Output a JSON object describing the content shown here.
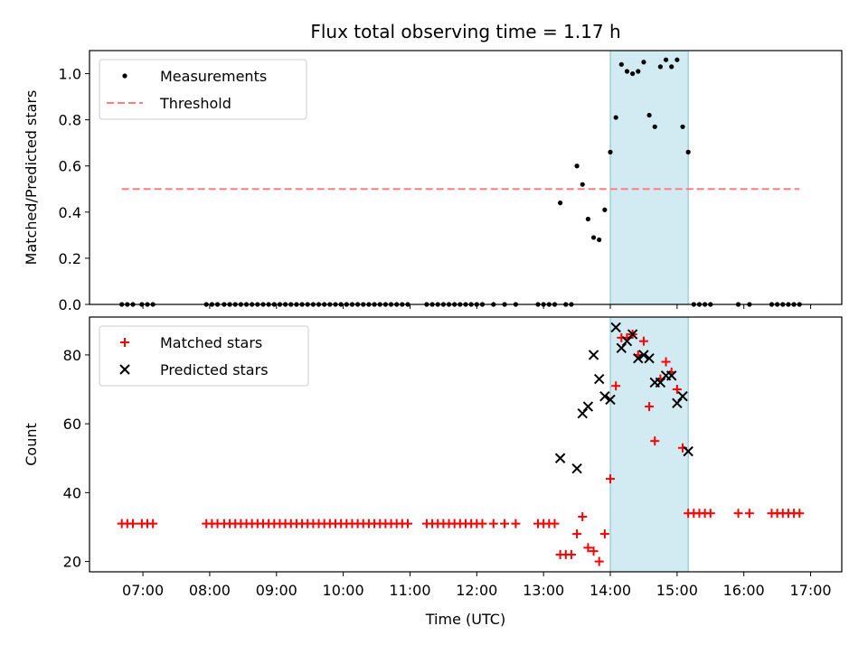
{
  "chart_data": [
    {
      "type": "scatter",
      "title": "Flux total observing time = 1.17 h",
      "xlabel": "",
      "ylabel": "Matched/Predicted stars",
      "ylim": [
        0,
        1.1
      ],
      "yticks": [
        "0.0",
        "0.2",
        "0.4",
        "0.6",
        "0.8",
        "1.0"
      ],
      "legend_position": "top-left",
      "highlight_span": {
        "from": "14:00",
        "to": "15:10",
        "color": "#add8e6"
      },
      "series": [
        {
          "name": "Measurements",
          "marker": "dot",
          "color": "#000000",
          "points": [
            [
              "06:41",
              0
            ],
            [
              "06:46",
              0
            ],
            [
              "06:51",
              0
            ],
            [
              "06:59",
              0
            ],
            [
              "07:04",
              0
            ],
            [
              "07:09",
              0
            ],
            [
              "07:57",
              0
            ],
            [
              "08:02",
              0
            ],
            [
              "08:07",
              0
            ],
            [
              "08:13",
              0
            ],
            [
              "08:18",
              0
            ],
            [
              "08:23",
              0
            ],
            [
              "08:28",
              0
            ],
            [
              "08:33",
              0
            ],
            [
              "08:38",
              0
            ],
            [
              "08:43",
              0
            ],
            [
              "08:48",
              0
            ],
            [
              "08:53",
              0
            ],
            [
              "08:58",
              0
            ],
            [
              "09:03",
              0
            ],
            [
              "09:08",
              0
            ],
            [
              "09:13",
              0
            ],
            [
              "09:18",
              0
            ],
            [
              "09:23",
              0
            ],
            [
              "09:28",
              0
            ],
            [
              "09:33",
              0
            ],
            [
              "09:38",
              0
            ],
            [
              "09:43",
              0
            ],
            [
              "09:48",
              0
            ],
            [
              "09:53",
              0
            ],
            [
              "09:58",
              0
            ],
            [
              "10:03",
              0
            ],
            [
              "10:08",
              0
            ],
            [
              "10:13",
              0
            ],
            [
              "10:18",
              0
            ],
            [
              "10:23",
              0
            ],
            [
              "10:28",
              0
            ],
            [
              "10:33",
              0
            ],
            [
              "10:38",
              0
            ],
            [
              "10:43",
              0
            ],
            [
              "10:48",
              0
            ],
            [
              "10:53",
              0
            ],
            [
              "10:58",
              0
            ],
            [
              "11:15",
              0
            ],
            [
              "11:20",
              0
            ],
            [
              "11:25",
              0
            ],
            [
              "11:30",
              0
            ],
            [
              "11:35",
              0
            ],
            [
              "11:40",
              0
            ],
            [
              "11:45",
              0
            ],
            [
              "11:50",
              0
            ],
            [
              "11:55",
              0
            ],
            [
              "12:00",
              0
            ],
            [
              "12:05",
              0
            ],
            [
              "12:15",
              0
            ],
            [
              "12:25",
              0
            ],
            [
              "12:35",
              0
            ],
            [
              "12:55",
              0
            ],
            [
              "13:00",
              0
            ],
            [
              "13:05",
              0
            ],
            [
              "13:10",
              0
            ],
            [
              "13:15",
              0.44
            ],
            [
              "13:20",
              0
            ],
            [
              "13:25",
              0
            ],
            [
              "13:30",
              0.6
            ],
            [
              "13:35",
              0.52
            ],
            [
              "13:40",
              0.37
            ],
            [
              "13:45",
              0.29
            ],
            [
              "13:50",
              0.28
            ],
            [
              "13:55",
              0.41
            ],
            [
              "14:00",
              0.66
            ],
            [
              "14:05",
              0.81
            ],
            [
              "14:10",
              1.04
            ],
            [
              "14:15",
              1.01
            ],
            [
              "14:20",
              1.0
            ],
            [
              "14:25",
              1.01
            ],
            [
              "14:30",
              1.05
            ],
            [
              "14:35",
              0.82
            ],
            [
              "14:40",
              0.77
            ],
            [
              "14:45",
              1.03
            ],
            [
              "14:50",
              1.06
            ],
            [
              "14:55",
              1.03
            ],
            [
              "15:00",
              1.06
            ],
            [
              "15:05",
              0.77
            ],
            [
              "15:10",
              0.66
            ],
            [
              "15:15",
              0
            ],
            [
              "15:20",
              0
            ],
            [
              "15:25",
              0
            ],
            [
              "15:30",
              0
            ],
            [
              "15:55",
              0
            ],
            [
              "16:05",
              0
            ],
            [
              "16:25",
              0
            ],
            [
              "16:30",
              0
            ],
            [
              "16:35",
              0
            ],
            [
              "16:40",
              0
            ],
            [
              "16:45",
              0
            ],
            [
              "16:50",
              0
            ]
          ]
        },
        {
          "name": "Threshold",
          "line": "dashed",
          "color": "#ff7f7f",
          "points": [
            [
              "06:41",
              0.5
            ],
            [
              "16:50",
              0.5
            ]
          ]
        }
      ]
    },
    {
      "type": "scatter",
      "title": "",
      "xlabel": "Time (UTC)",
      "ylabel": "Count",
      "ylim": [
        17,
        91
      ],
      "yticks": [
        "20",
        "40",
        "60",
        "80"
      ],
      "xticks": [
        "07:00",
        "08:00",
        "09:00",
        "10:00",
        "11:00",
        "12:00",
        "13:00",
        "14:00",
        "15:00",
        "16:00",
        "17:00"
      ],
      "xlim": [
        "06:12",
        "17:28"
      ],
      "legend_position": "top-left",
      "highlight_span": {
        "from": "14:00",
        "to": "15:10",
        "color": "#add8e6"
      },
      "series": [
        {
          "name": "Matched stars",
          "marker": "plus",
          "color": "#ff0000",
          "points": [
            [
              "06:41",
              31
            ],
            [
              "06:46",
              31
            ],
            [
              "06:51",
              31
            ],
            [
              "06:59",
              31
            ],
            [
              "07:04",
              31
            ],
            [
              "07:09",
              31
            ],
            [
              "07:57",
              31
            ],
            [
              "08:02",
              31
            ],
            [
              "08:07",
              31
            ],
            [
              "08:13",
              31
            ],
            [
              "08:18",
              31
            ],
            [
              "08:23",
              31
            ],
            [
              "08:28",
              31
            ],
            [
              "08:33",
              31
            ],
            [
              "08:38",
              31
            ],
            [
              "08:43",
              31
            ],
            [
              "08:48",
              31
            ],
            [
              "08:53",
              31
            ],
            [
              "08:58",
              31
            ],
            [
              "09:03",
              31
            ],
            [
              "09:08",
              31
            ],
            [
              "09:13",
              31
            ],
            [
              "09:18",
              31
            ],
            [
              "09:23",
              31
            ],
            [
              "09:28",
              31
            ],
            [
              "09:33",
              31
            ],
            [
              "09:38",
              31
            ],
            [
              "09:43",
              31
            ],
            [
              "09:48",
              31
            ],
            [
              "09:53",
              31
            ],
            [
              "09:58",
              31
            ],
            [
              "10:03",
              31
            ],
            [
              "10:08",
              31
            ],
            [
              "10:13",
              31
            ],
            [
              "10:18",
              31
            ],
            [
              "10:23",
              31
            ],
            [
              "10:28",
              31
            ],
            [
              "10:33",
              31
            ],
            [
              "10:38",
              31
            ],
            [
              "10:43",
              31
            ],
            [
              "10:48",
              31
            ],
            [
              "10:53",
              31
            ],
            [
              "10:58",
              31
            ],
            [
              "11:15",
              31
            ],
            [
              "11:20",
              31
            ],
            [
              "11:25",
              31
            ],
            [
              "11:30",
              31
            ],
            [
              "11:35",
              31
            ],
            [
              "11:40",
              31
            ],
            [
              "11:45",
              31
            ],
            [
              "11:50",
              31
            ],
            [
              "11:55",
              31
            ],
            [
              "12:00",
              31
            ],
            [
              "12:05",
              31
            ],
            [
              "12:15",
              31
            ],
            [
              "12:25",
              31
            ],
            [
              "12:35",
              31
            ],
            [
              "12:55",
              31
            ],
            [
              "13:00",
              31
            ],
            [
              "13:05",
              31
            ],
            [
              "13:10",
              31
            ],
            [
              "13:15",
              22
            ],
            [
              "13:20",
              22
            ],
            [
              "13:25",
              22
            ],
            [
              "13:30",
              28
            ],
            [
              "13:35",
              33
            ],
            [
              "13:40",
              24
            ],
            [
              "13:45",
              23
            ],
            [
              "13:50",
              20
            ],
            [
              "13:55",
              28
            ],
            [
              "14:00",
              44
            ],
            [
              "14:05",
              71
            ],
            [
              "14:10",
              85
            ],
            [
              "14:15",
              85
            ],
            [
              "14:20",
              86
            ],
            [
              "14:25",
              80
            ],
            [
              "14:30",
              84
            ],
            [
              "14:35",
              65
            ],
            [
              "14:40",
              55
            ],
            [
              "14:45",
              73
            ],
            [
              "14:50",
              78
            ],
            [
              "14:55",
              75
            ],
            [
              "15:00",
              70
            ],
            [
              "15:05",
              53
            ],
            [
              "15:10",
              34
            ],
            [
              "15:15",
              34
            ],
            [
              "15:20",
              34
            ],
            [
              "15:25",
              34
            ],
            [
              "15:30",
              34
            ],
            [
              "15:55",
              34
            ],
            [
              "16:05",
              34
            ],
            [
              "16:25",
              34
            ],
            [
              "16:30",
              34
            ],
            [
              "16:35",
              34
            ],
            [
              "16:40",
              34
            ],
            [
              "16:45",
              34
            ],
            [
              "16:50",
              34
            ]
          ]
        },
        {
          "name": "Predicted stars",
          "marker": "x",
          "color": "#000000",
          "points": [
            [
              "13:15",
              50
            ],
            [
              "13:30",
              47
            ],
            [
              "13:35",
              63
            ],
            [
              "13:40",
              65
            ],
            [
              "13:45",
              80
            ],
            [
              "13:50",
              73
            ],
            [
              "13:55",
              68
            ],
            [
              "14:00",
              67
            ],
            [
              "14:05",
              88
            ],
            [
              "14:10",
              82
            ],
            [
              "14:15",
              84
            ],
            [
              "14:20",
              86
            ],
            [
              "14:25",
              79
            ],
            [
              "14:30",
              80
            ],
            [
              "14:35",
              79
            ],
            [
              "14:40",
              72
            ],
            [
              "14:45",
              72
            ],
            [
              "14:50",
              74
            ],
            [
              "14:55",
              74
            ],
            [
              "15:00",
              66
            ],
            [
              "15:05",
              68
            ],
            [
              "15:10",
              52
            ]
          ]
        }
      ]
    }
  ]
}
